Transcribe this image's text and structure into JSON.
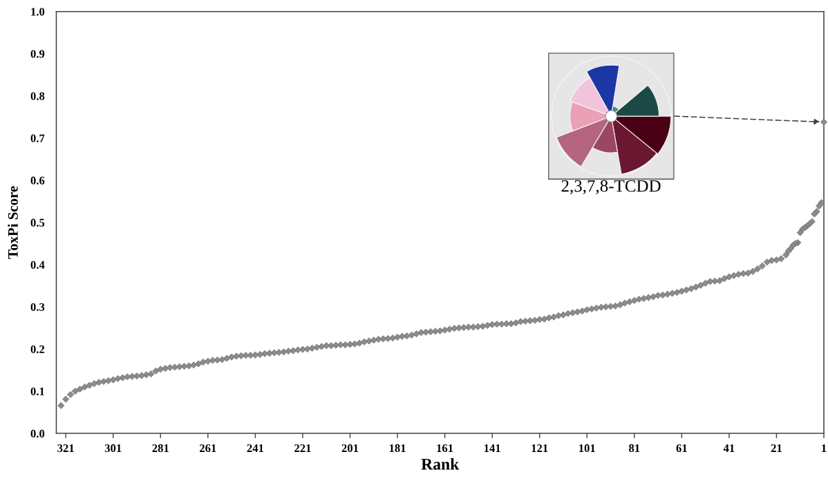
{
  "chart_data": {
    "type": "scatter",
    "xlabel": "Rank",
    "ylabel": "ToxPi Score",
    "xlim": [
      325,
      1
    ],
    "xticks": [
      321,
      301,
      281,
      261,
      241,
      221,
      201,
      181,
      161,
      141,
      121,
      101,
      81,
      61,
      41,
      21,
      1
    ],
    "ylim": [
      0,
      1
    ],
    "yticks": [
      {
        "value": 0,
        "label": "0.0"
      },
      0.1,
      0.2,
      0.3,
      0.4,
      0.5,
      0.6,
      0.7,
      0.8,
      0.9,
      {
        "value": 1,
        "label": "1.0"
      }
    ],
    "marker": "diamond",
    "annotations": [
      "2,3,7,8-TCDD"
    ],
    "series": [
      {
        "color": "#8c8c8c",
        "x": [
          1,
          2,
          3,
          4,
          5,
          6,
          7,
          8,
          9,
          10,
          11,
          12,
          13,
          14,
          15,
          16,
          17,
          19,
          21,
          23,
          25,
          27,
          29,
          31,
          33,
          35,
          37,
          39,
          41,
          43,
          45,
          47,
          49,
          51,
          53,
          55,
          57,
          59,
          61,
          63,
          65,
          67,
          69,
          71,
          73,
          75,
          77,
          79,
          81,
          83,
          85,
          87,
          89,
          91,
          93,
          95,
          97,
          99,
          101,
          103,
          105,
          107,
          109,
          111,
          113,
          115,
          117,
          119,
          121,
          123,
          125,
          127,
          129,
          131,
          133,
          135,
          137,
          139,
          141,
          143,
          145,
          147,
          149,
          151,
          153,
          155,
          157,
          159,
          161,
          163,
          165,
          167,
          169,
          171,
          173,
          175,
          177,
          179,
          181,
          183,
          185,
          187,
          189,
          191,
          193,
          195,
          197,
          199,
          201,
          203,
          205,
          207,
          209,
          211,
          213,
          215,
          217,
          219,
          221,
          223,
          225,
          227,
          229,
          231,
          233,
          235,
          237,
          239,
          241,
          243,
          245,
          247,
          249,
          251,
          253,
          255,
          257,
          259,
          261,
          263,
          265,
          267,
          269,
          271,
          273,
          275,
          277,
          279,
          281,
          283,
          285,
          287,
          289,
          291,
          293,
          295,
          297,
          299,
          301,
          303,
          305,
          307,
          309,
          311,
          313,
          315,
          317,
          319,
          321,
          323
        ],
        "values": [
          0.738,
          0.547,
          0.539,
          0.526,
          0.52,
          0.502,
          0.497,
          0.492,
          0.488,
          0.484,
          0.476,
          0.452,
          0.45,
          0.446,
          0.438,
          0.432,
          0.423,
          0.414,
          0.411,
          0.41,
          0.406,
          0.397,
          0.39,
          0.384,
          0.38,
          0.379,
          0.377,
          0.374,
          0.371,
          0.367,
          0.362,
          0.361,
          0.36,
          0.356,
          0.351,
          0.347,
          0.343,
          0.34,
          0.337,
          0.334,
          0.332,
          0.33,
          0.328,
          0.327,
          0.324,
          0.322,
          0.32,
          0.318,
          0.315,
          0.312,
          0.309,
          0.305,
          0.302,
          0.301,
          0.3,
          0.299,
          0.297,
          0.295,
          0.293,
          0.29,
          0.288,
          0.286,
          0.284,
          0.281,
          0.279,
          0.276,
          0.274,
          0.271,
          0.27,
          0.268,
          0.267,
          0.266,
          0.265,
          0.262,
          0.26,
          0.26,
          0.259,
          0.259,
          0.258,
          0.256,
          0.254,
          0.253,
          0.252,
          0.252,
          0.251,
          0.25,
          0.249,
          0.247,
          0.245,
          0.243,
          0.242,
          0.241,
          0.24,
          0.239,
          0.236,
          0.233,
          0.231,
          0.23,
          0.228,
          0.226,
          0.225,
          0.224,
          0.223,
          0.221,
          0.219,
          0.217,
          0.214,
          0.212,
          0.211,
          0.21,
          0.21,
          0.209,
          0.208,
          0.208,
          0.206,
          0.204,
          0.202,
          0.2,
          0.199,
          0.198,
          0.196,
          0.195,
          0.193,
          0.192,
          0.191,
          0.19,
          0.189,
          0.187,
          0.186,
          0.185,
          0.185,
          0.184,
          0.183,
          0.181,
          0.178,
          0.175,
          0.174,
          0.173,
          0.171,
          0.169,
          0.165,
          0.162,
          0.16,
          0.159,
          0.158,
          0.157,
          0.156,
          0.154,
          0.152,
          0.148,
          0.141,
          0.139,
          0.137,
          0.136,
          0.135,
          0.134,
          0.132,
          0.13,
          0.127,
          0.125,
          0.123,
          0.121,
          0.118,
          0.114,
          0.11,
          0.105,
          0.1,
          0.092,
          0.081,
          0.066
        ]
      }
    ]
  }
}
